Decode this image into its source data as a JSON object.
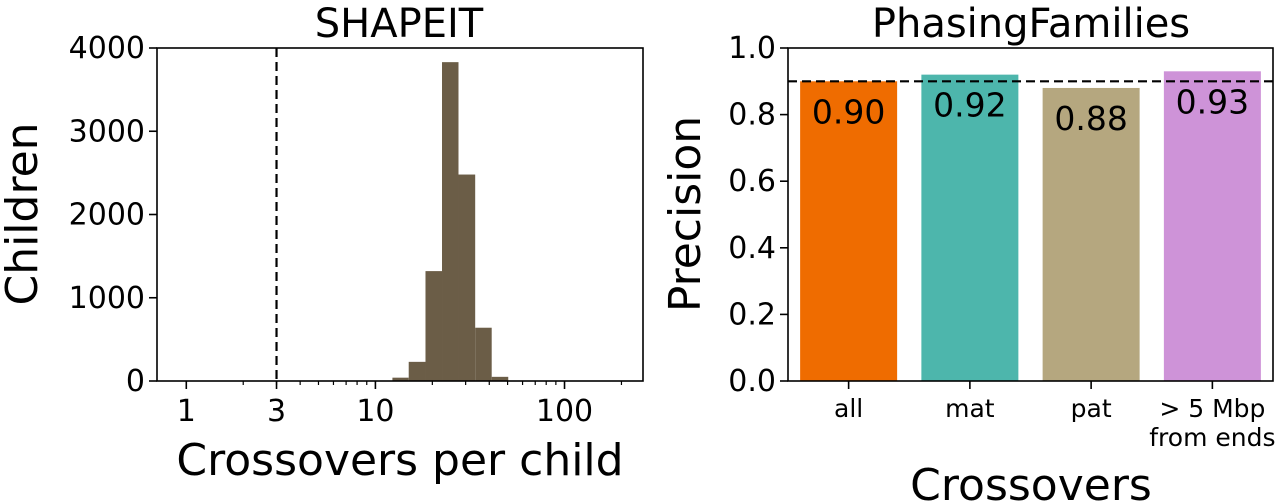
{
  "chart_data": [
    {
      "type": "histogram",
      "title": "SHAPEIT",
      "xlabel": "Crossovers per child",
      "ylabel": "Children",
      "xscale": "log",
      "xlim": [
        0.7,
        260
      ],
      "ylim": [
        0,
        4000
      ],
      "xticks": [
        1,
        3,
        10,
        100
      ],
      "xtick_labels": [
        "1",
        "3",
        "10",
        "100"
      ],
      "yticks": [
        0,
        1000,
        2000,
        3000,
        4000
      ],
      "ytick_labels": [
        "0",
        "1000",
        "2000",
        "3000",
        "4000"
      ],
      "bin_edges": [
        12.3,
        15.0,
        18.4,
        22.5,
        27.5,
        33.7,
        41.2,
        50.4
      ],
      "counts": [
        40,
        230,
        1320,
        3830,
        2480,
        640,
        50
      ],
      "bar_color": "#6b5d47",
      "reference_line": {
        "x": 3,
        "style": "dashed"
      }
    },
    {
      "type": "bar",
      "title": "PhasingFamilies",
      "xlabel": "Crossovers",
      "ylabel": "Precision",
      "ylim": [
        0,
        1.0
      ],
      "yticks": [
        0.0,
        0.2,
        0.4,
        0.6,
        0.8,
        1.0
      ],
      "ytick_labels": [
        "0.0",
        "0.2",
        "0.4",
        "0.6",
        "0.8",
        "1.0"
      ],
      "categories": [
        [
          "all"
        ],
        [
          "mat"
        ],
        [
          "pat"
        ],
        [
          "> 5 Mbp",
          "from ends"
        ]
      ],
      "values": [
        0.9,
        0.92,
        0.88,
        0.93
      ],
      "value_labels": [
        "0.90",
        "0.92",
        "0.88",
        "0.93"
      ],
      "colors": [
        "#ef6c00",
        "#4db6ac",
        "#b5a77f",
        "#ce93d8"
      ],
      "reference_line": {
        "y": 0.9,
        "style": "dashed"
      }
    }
  ]
}
